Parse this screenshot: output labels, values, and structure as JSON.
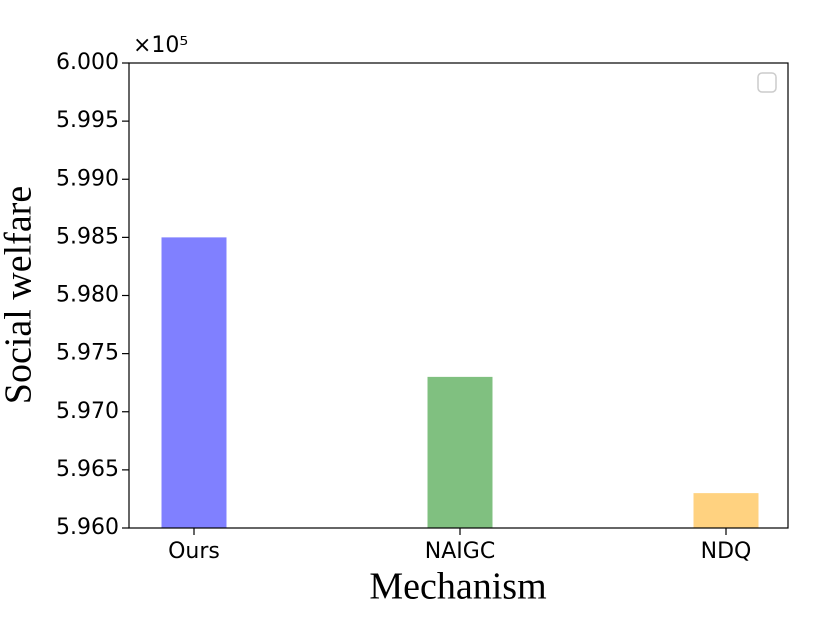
{
  "chart_data": {
    "type": "bar",
    "xlabel": "Mechanism",
    "ylabel": "Social welfare",
    "offset_text": "×10⁵",
    "categories": [
      "Ours",
      "NAIGC",
      "NDQ"
    ],
    "values": [
      5.985,
      5.973,
      5.963
    ],
    "colors": [
      "#8080ff",
      "#80c080",
      "#ffd280"
    ],
    "ylim": [
      5.96,
      6.0
    ],
    "yticks": [
      {
        "value": 5.96,
        "label": "5.960"
      },
      {
        "value": 5.965,
        "label": "5.965"
      },
      {
        "value": 5.97,
        "label": "5.970"
      },
      {
        "value": 5.975,
        "label": "5.975"
      },
      {
        "value": 5.98,
        "label": "5.980"
      },
      {
        "value": 5.985,
        "label": "5.985"
      },
      {
        "value": 5.99,
        "label": "5.990"
      },
      {
        "value": 5.995,
        "label": "5.995"
      },
      {
        "value": 6.0,
        "label": "6.000"
      }
    ]
  }
}
